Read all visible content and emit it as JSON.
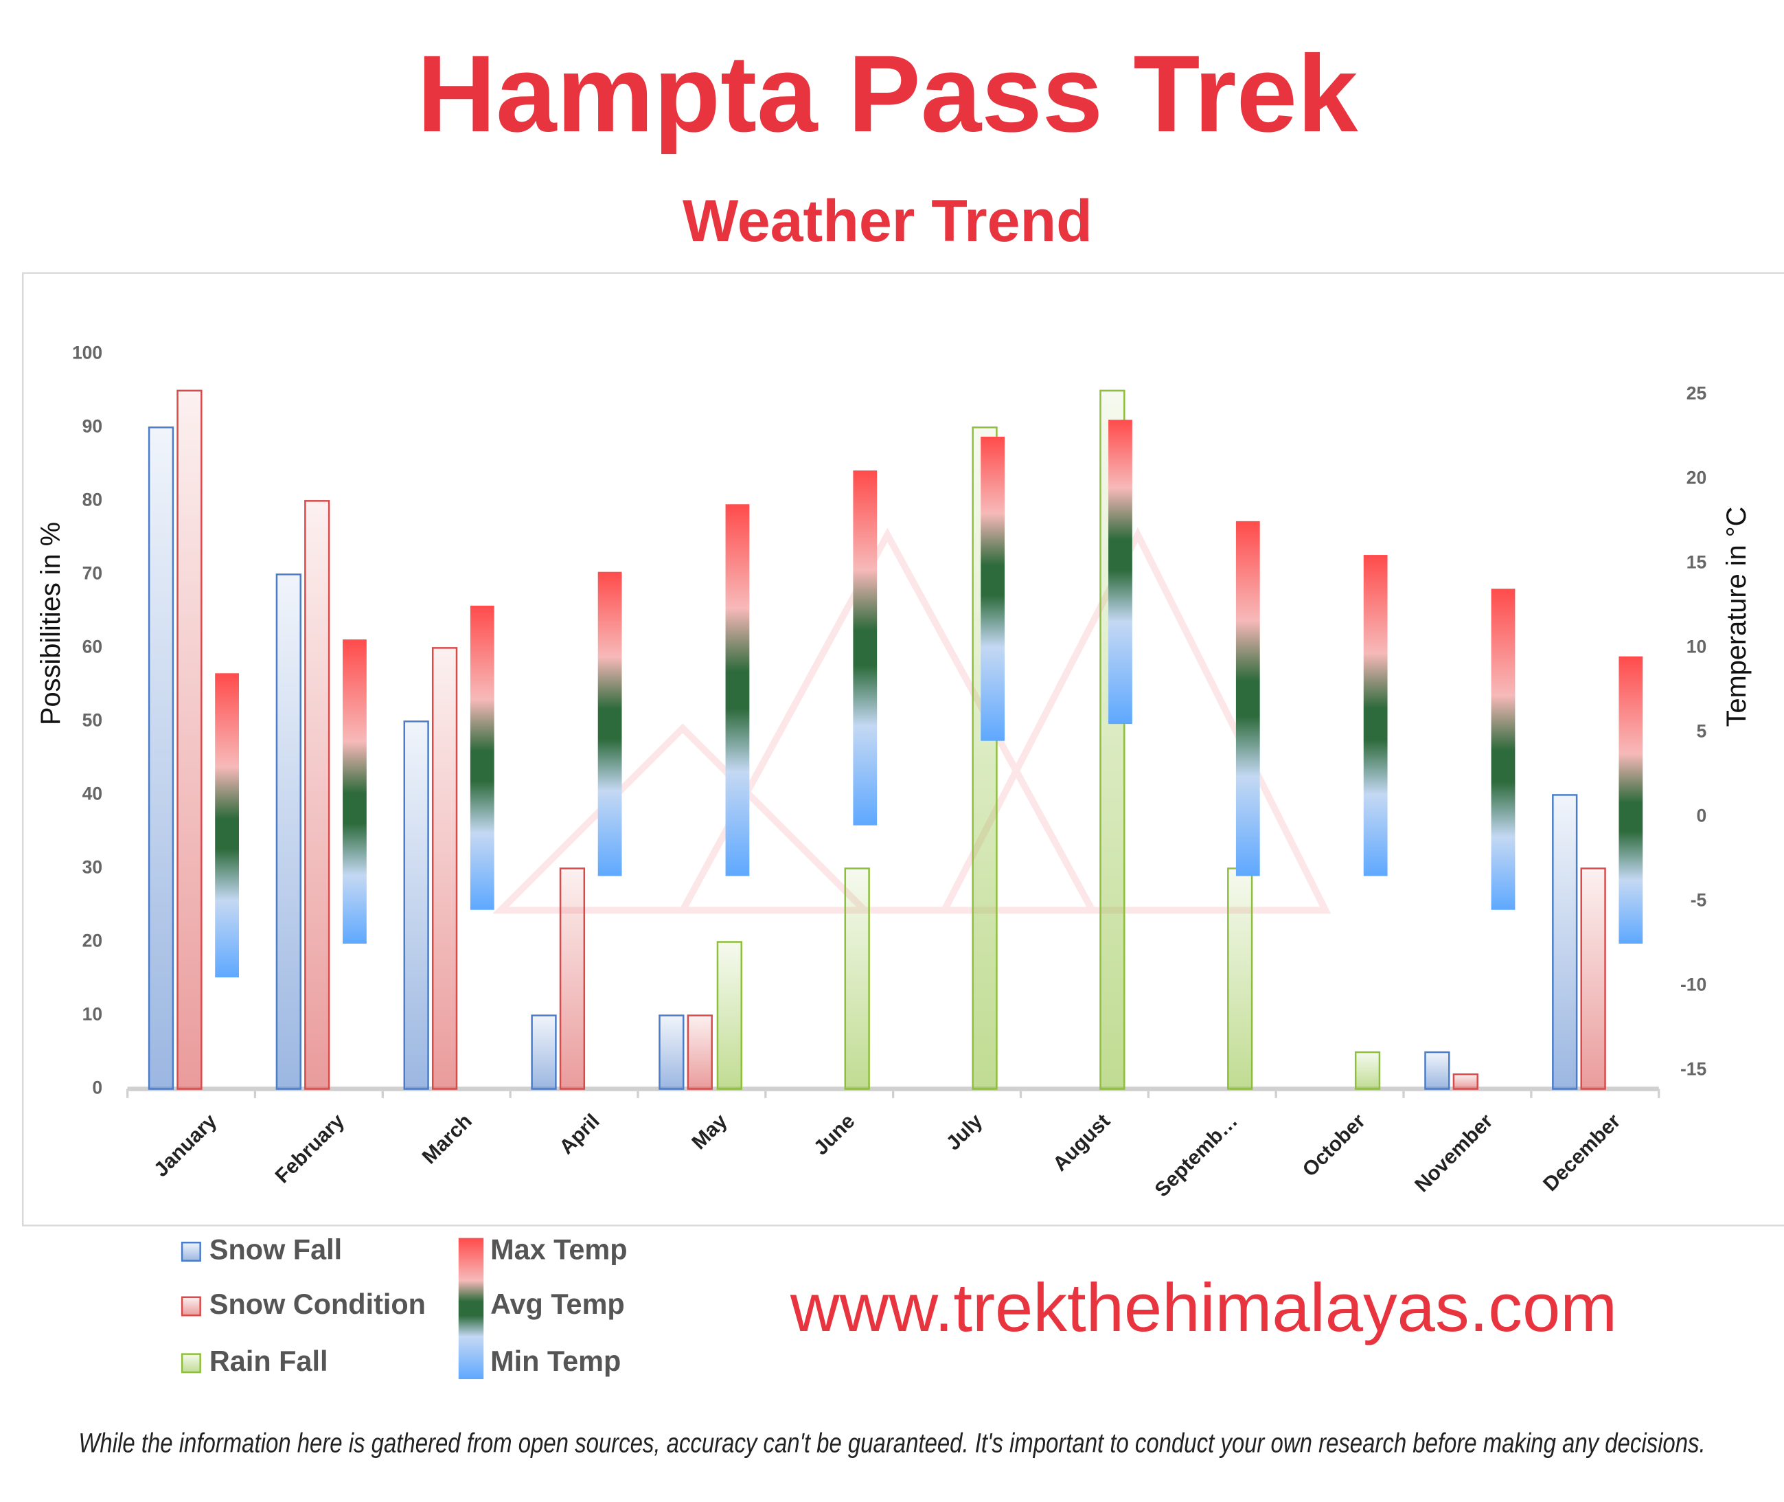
{
  "chart_data": {
    "type": "bar",
    "title": "Hampta Pass Trek",
    "subtitle": "Weather Trend",
    "y_label": "Possibilities in %",
    "y2_label": "Temperature in °C",
    "categories": [
      "January",
      "February",
      "March",
      "April",
      "May",
      "June",
      "July",
      "August",
      "Septemb…",
      "October",
      "November",
      "December"
    ],
    "series": [
      {
        "name": "Snow Fall",
        "color": "#4a7cc9",
        "values": [
          90,
          70,
          50,
          10,
          10,
          0,
          0,
          0,
          0,
          0,
          5,
          40
        ]
      },
      {
        "name": "Snow Condition",
        "color": "#d94a4a",
        "values": [
          95,
          80,
          60,
          30,
          10,
          0,
          0,
          0,
          0,
          0,
          2,
          30
        ]
      },
      {
        "name": "Rain Fall",
        "color": "#8dbf3a",
        "values": [
          0,
          0,
          0,
          0,
          20,
          30,
          90,
          95,
          30,
          5,
          0,
          0
        ]
      },
      {
        "name": "Max Temp",
        "color": "#ff4b4b",
        "axis": "y2",
        "values": [
          8.5,
          10.5,
          12.5,
          14.5,
          18.5,
          20.5,
          22.5,
          23.5,
          17.5,
          15.5,
          13.5,
          9.5
        ]
      },
      {
        "name": "Avg Temp",
        "color": "#2e6b3c",
        "axis": "y2",
        "values": [
          -1,
          0.5,
          3,
          5.5,
          7.5,
          10,
          14,
          15.5,
          7,
          5.5,
          3,
          0
        ]
      },
      {
        "name": "Min Temp",
        "color": "#5ea8ff",
        "axis": "y2",
        "values": [
          -9.5,
          -7.5,
          -5.5,
          -3.5,
          -3.5,
          -0.5,
          4.5,
          5.5,
          -3.5,
          -3.5,
          -5.5,
          -7.5
        ]
      }
    ],
    "ylim": [
      0,
      100
    ],
    "yticks": [
      0,
      10,
      20,
      30,
      40,
      50,
      60,
      70,
      80,
      90,
      100
    ],
    "y2lim": [
      -16.1,
      27.4
    ],
    "y2ticks": [
      -15,
      -10,
      -5,
      0,
      5,
      10,
      15,
      20,
      25
    ],
    "grid": false
  },
  "footer": {
    "website": "www.trekthehimalayas.com",
    "disclaimer": "While the information here is gathered from open sources, accuracy can't be guaranteed. It's important to conduct your own research before making any decisions."
  }
}
